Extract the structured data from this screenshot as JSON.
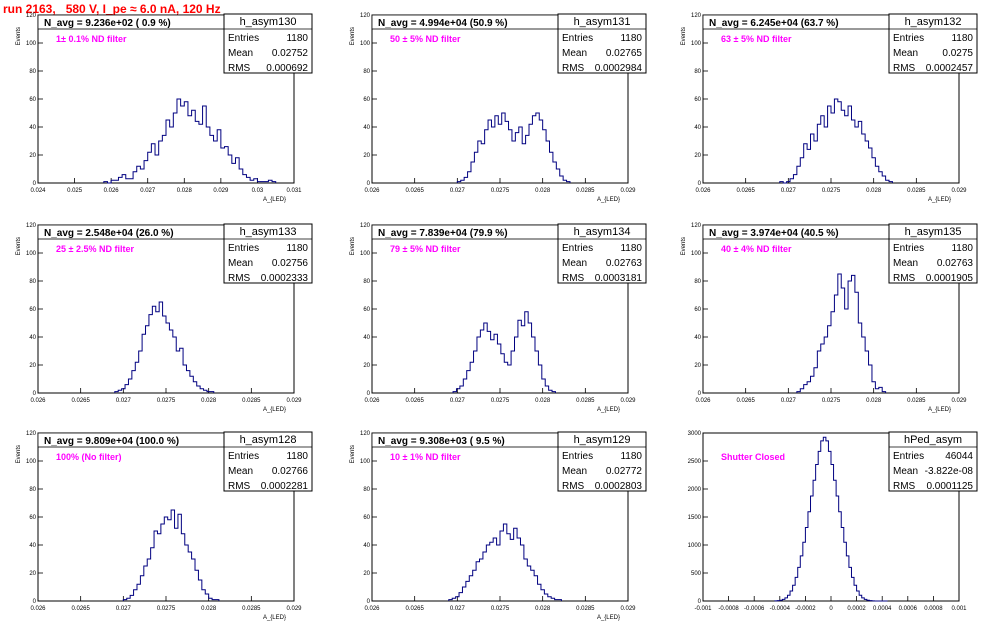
{
  "run_title": "run 2163,   580 V, I_pe ≈ 6.0 nA, 120 Hz",
  "colors": {
    "hist_line": "#000080",
    "annotation": "#ff00ff",
    "title": "#ff0000",
    "axes": "#000000"
  },
  "chart_data": [
    {
      "type": "histogram",
      "name": "h_asym130",
      "stats": {
        "entries_label": "Entries",
        "entries": "1180",
        "mean_label": "Mean",
        "mean": "0.02752",
        "rms_label": "RMS",
        "rms": "0.000692"
      },
      "navg": "N_avg = 9.236e+02 ( 0.9 %)",
      "annotation": "1± 0.1% ND filter",
      "ylabel": "Events",
      "xlabel": "A_{LED}",
      "xlim": [
        0.024,
        0.031
      ],
      "ylim": [
        0,
        120
      ],
      "xticks": [
        "0.024",
        "0.025",
        "0.026",
        "0.027",
        "0.028",
        "0.029",
        "0.03",
        "0.031"
      ],
      "yticks": [
        "0",
        "20",
        "40",
        "60",
        "80",
        "100",
        "120"
      ],
      "bins": {
        "start": 0.0258,
        "width": 0.0001,
        "counts": [
          1,
          0,
          2,
          2,
          4,
          6,
          3,
          3,
          8,
          12,
          10,
          16,
          22,
          28,
          20,
          30,
          34,
          45,
          40,
          50,
          60,
          55,
          58,
          48,
          52,
          44,
          42,
          55,
          40,
          34,
          30,
          38,
          25,
          26,
          20,
          14,
          18,
          10,
          6,
          4,
          2,
          3,
          1,
          1,
          1,
          2,
          1
        ]
      }
    },
    {
      "type": "histogram",
      "name": "h_asym131",
      "stats": {
        "entries_label": "Entries",
        "entries": "1180",
        "mean_label": "Mean",
        "mean": "0.02765",
        "rms_label": "RMS",
        "rms": "0.0002984"
      },
      "navg": "N_avg = 4.994e+04 (50.9 %)",
      "annotation": "50 ± 5% ND filter",
      "ylabel": "Events",
      "xlabel": "A_{LED}",
      "xlim": [
        0.026,
        0.029
      ],
      "ylim": [
        0,
        120
      ],
      "xticks": [
        "0.026",
        "0.0265",
        "0.027",
        "0.0275",
        "0.028",
        "0.0285",
        "0.029"
      ],
      "yticks": [
        "0",
        "20",
        "40",
        "60",
        "80",
        "100",
        "120"
      ],
      "bins": {
        "start": 0.027,
        "width": 4e-05,
        "counts": [
          1,
          2,
          4,
          8,
          15,
          22,
          30,
          28,
          38,
          45,
          40,
          48,
          42,
          50,
          44,
          38,
          30,
          36,
          40,
          28,
          34,
          42,
          48,
          50,
          45,
          38,
          30,
          22,
          15,
          10,
          5,
          2,
          1
        ]
      }
    },
    {
      "type": "histogram",
      "name": "h_asym132",
      "stats": {
        "entries_label": "Entries",
        "entries": "1180",
        "mean_label": "Mean",
        "mean": "0.0275",
        "rms_label": "RMS",
        "rms": "0.0002457"
      },
      "navg": "N_avg = 6.245e+04 (63.7 %)",
      "annotation": "63 ± 5% ND filter",
      "ylabel": "Events",
      "xlabel": "A_{LED}",
      "xlim": [
        0.026,
        0.029
      ],
      "ylim": [
        0,
        120
      ],
      "xticks": [
        "0.026",
        "0.0265",
        "0.027",
        "0.0275",
        "0.028",
        "0.0285",
        "0.029"
      ],
      "yticks": [
        "0",
        "20",
        "40",
        "60",
        "80",
        "100",
        "120"
      ],
      "bins": {
        "start": 0.0269,
        "width": 4e-05,
        "counts": [
          1,
          0,
          1,
          3,
          6,
          12,
          18,
          28,
          24,
          35,
          30,
          42,
          48,
          40,
          55,
          50,
          60,
          58,
          52,
          48,
          55,
          45,
          40,
          44,
          35,
          30,
          25,
          18,
          12,
          8,
          5,
          2,
          1
        ]
      }
    },
    {
      "type": "histogram",
      "name": "h_asym133",
      "stats": {
        "entries_label": "Entries",
        "entries": "1180",
        "mean_label": "Mean",
        "mean": "0.02756",
        "rms_label": "RMS",
        "rms": "0.0002333"
      },
      "navg": "N_avg = 2.548e+04 (26.0 %)",
      "annotation": "25 ± 2.5% ND filter",
      "ylabel": "Events",
      "xlabel": "A_{LED}",
      "xlim": [
        0.026,
        0.029
      ],
      "ylim": [
        0,
        120
      ],
      "xticks": [
        "0.026",
        "0.0265",
        "0.027",
        "0.0275",
        "0.028",
        "0.0285",
        "0.029"
      ],
      "yticks": [
        "0",
        "20",
        "40",
        "60",
        "80",
        "100",
        "120"
      ],
      "bins": {
        "start": 0.0269,
        "width": 4e-05,
        "counts": [
          1,
          2,
          3,
          6,
          10,
          16,
          22,
          30,
          42,
          48,
          56,
          62,
          58,
          65,
          55,
          50,
          45,
          40,
          30,
          32,
          20,
          16,
          12,
          8,
          5,
          3,
          2,
          1,
          1
        ]
      }
    },
    {
      "type": "histogram",
      "name": "h_asym134",
      "stats": {
        "entries_label": "Entries",
        "entries": "1180",
        "mean_label": "Mean",
        "mean": "0.02763",
        "rms_label": "RMS",
        "rms": "0.0003181"
      },
      "navg": "N_avg = 7.839e+04 (79.9 %)",
      "annotation": "79 ± 5% ND filter",
      "ylabel": "Events",
      "xlabel": "A_{LED}",
      "xlim": [
        0.026,
        0.029
      ],
      "ylim": [
        0,
        120
      ],
      "xticks": [
        "0.026",
        "0.0265",
        "0.027",
        "0.0275",
        "0.028",
        "0.0285",
        "0.029"
      ],
      "yticks": [
        "0",
        "20",
        "40",
        "60",
        "80",
        "100",
        "120"
      ],
      "bins": {
        "start": 0.02695,
        "width": 4e-05,
        "counts": [
          1,
          3,
          5,
          10,
          16,
          22,
          30,
          40,
          45,
          50,
          44,
          38,
          42,
          35,
          28,
          22,
          20,
          30,
          40,
          52,
          48,
          58,
          50,
          40,
          30,
          20,
          10,
          5,
          2,
          1
        ]
      }
    },
    {
      "type": "histogram",
      "name": "h_asym135",
      "stats": {
        "entries_label": "Entries",
        "entries": "1180",
        "mean_label": "Mean",
        "mean": "0.02763",
        "rms_label": "RMS",
        "rms": "0.0001905"
      },
      "navg": "N_avg = 3.974e+04 (40.5 %)",
      "annotation": "40 ± 4% ND filter",
      "ylabel": "Events",
      "xlabel": "A_{LED}",
      "xlim": [
        0.026,
        0.029
      ],
      "ylim": [
        0,
        120
      ],
      "xticks": [
        "0.026",
        "0.0265",
        "0.027",
        "0.0275",
        "0.028",
        "0.0285",
        "0.029"
      ],
      "yticks": [
        "0",
        "20",
        "40",
        "60",
        "80",
        "100",
        "120"
      ],
      "bins": {
        "start": 0.0271,
        "width": 4e-05,
        "counts": [
          1,
          3,
          6,
          8,
          12,
          18,
          30,
          35,
          40,
          48,
          58,
          70,
          85,
          75,
          60,
          80,
          84,
          72,
          50,
          40,
          30,
          20,
          8,
          3,
          4,
          1
        ]
      }
    },
    {
      "type": "histogram",
      "name": "h_asym128",
      "stats": {
        "entries_label": "Entries",
        "entries": "1180",
        "mean_label": "Mean",
        "mean": "0.02766",
        "rms_label": "RMS",
        "rms": "0.0002281"
      },
      "navg": "N_avg = 9.809e+04 (100.0 %)",
      "annotation": "100% (No filter)",
      "ylabel": "Events",
      "xlabel": "A_{LED}",
      "xlim": [
        0.026,
        0.029
      ],
      "ylim": [
        0,
        120
      ],
      "xticks": [
        "0.026",
        "0.0265",
        "0.027",
        "0.0275",
        "0.028",
        "0.0285",
        "0.029"
      ],
      "yticks": [
        "0",
        "20",
        "40",
        "60",
        "80",
        "100",
        "120"
      ],
      "bins": {
        "start": 0.027,
        "width": 4e-05,
        "counts": [
          1,
          2,
          4,
          8,
          12,
          18,
          25,
          30,
          38,
          50,
          48,
          55,
          60,
          58,
          65,
          52,
          62,
          48,
          40,
          35,
          30,
          22,
          15,
          8,
          5,
          2,
          1,
          1
        ]
      }
    },
    {
      "type": "histogram",
      "name": "h_asym129",
      "stats": {
        "entries_label": "Entries",
        "entries": "1180",
        "mean_label": "Mean",
        "mean": "0.02772",
        "rms_label": "RMS",
        "rms": "0.0002803"
      },
      "navg": "N_avg = 9.308e+03 ( 9.5 %)",
      "annotation": "10 ± 1% ND filter",
      "ylabel": "Events",
      "xlabel": "A_{LED}",
      "xlim": [
        0.026,
        0.029
      ],
      "ylim": [
        0,
        120
      ],
      "xticks": [
        "0.026",
        "0.0265",
        "0.027",
        "0.0275",
        "0.028",
        "0.0285",
        "0.029"
      ],
      "yticks": [
        "0",
        "20",
        "40",
        "60",
        "80",
        "100",
        "120"
      ],
      "bins": {
        "start": 0.0269,
        "width": 4e-05,
        "counts": [
          1,
          2,
          3,
          6,
          10,
          14,
          18,
          22,
          28,
          30,
          35,
          40,
          42,
          45,
          40,
          50,
          55,
          48,
          44,
          52,
          45,
          40,
          30,
          25,
          22,
          18,
          12,
          8,
          5,
          3,
          2,
          1,
          1
        ]
      }
    },
    {
      "type": "histogram",
      "name": "hPed_asym",
      "stats": {
        "entries_label": "Entries",
        "entries": "46044",
        "mean_label": "Mean",
        "mean": "-3.822e-08",
        "rms_label": "RMS",
        "rms": "0.0001125"
      },
      "navg": "",
      "annotation": "Shutter Closed",
      "ylabel": "",
      "xlabel": "",
      "xlim": [
        -0.001,
        0.001
      ],
      "ylim": [
        0,
        3200
      ],
      "xticks": [
        "-0.001",
        "-0.0008",
        "-0.0006",
        "-0.0004",
        "-0.0002",
        "0",
        "0.0002",
        "0.0004",
        "0.0006",
        "0.0008",
        "0.001"
      ],
      "yticks": [
        "0",
        "500",
        "1000",
        "1500",
        "2000",
        "2500",
        "3000"
      ],
      "bins": {
        "start": -0.00044,
        "width": 2e-05,
        "counts": [
          3,
          8,
          15,
          30,
          60,
          110,
          190,
          300,
          450,
          640,
          860,
          1120,
          1400,
          1700,
          2000,
          2300,
          2600,
          2850,
          3050,
          3120,
          3050,
          2850,
          2600,
          2300,
          2000,
          1700,
          1400,
          1120,
          860,
          640,
          450,
          300,
          190,
          110,
          60,
          30,
          15,
          8,
          3,
          1,
          1,
          1,
          1,
          1
        ]
      }
    }
  ]
}
